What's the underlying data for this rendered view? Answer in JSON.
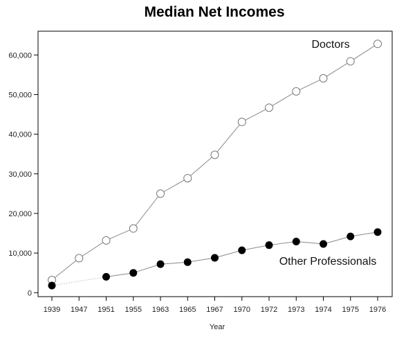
{
  "chart_data": {
    "type": "line",
    "title": "Median Net Incomes",
    "xlabel": "Year",
    "ylabel": "",
    "categories": [
      "1939",
      "1947",
      "1951",
      "1955",
      "1963",
      "1965",
      "1967",
      "1970",
      "1972",
      "1973",
      "1974",
      "1975",
      "1976"
    ],
    "y_ticks": [
      "0",
      "10,000",
      "20,000",
      "30,000",
      "40,000",
      "50,000",
      "60,000"
    ],
    "ylim": [
      -1000,
      66000
    ],
    "grid": false,
    "series": [
      {
        "name": "Doctors",
        "marker": "open-circle",
        "color": "#888888",
        "values": [
          3200,
          8700,
          13200,
          16200,
          25000,
          28900,
          34800,
          43100,
          46700,
          50800,
          54100,
          58400,
          62800
        ]
      },
      {
        "name": "Other Professionals",
        "marker": "filled-circle",
        "color": "#000000",
        "values": [
          1800,
          null,
          4000,
          5000,
          7200,
          7700,
          8800,
          10700,
          12000,
          12900,
          12300,
          14200,
          15300
        ]
      }
    ]
  }
}
